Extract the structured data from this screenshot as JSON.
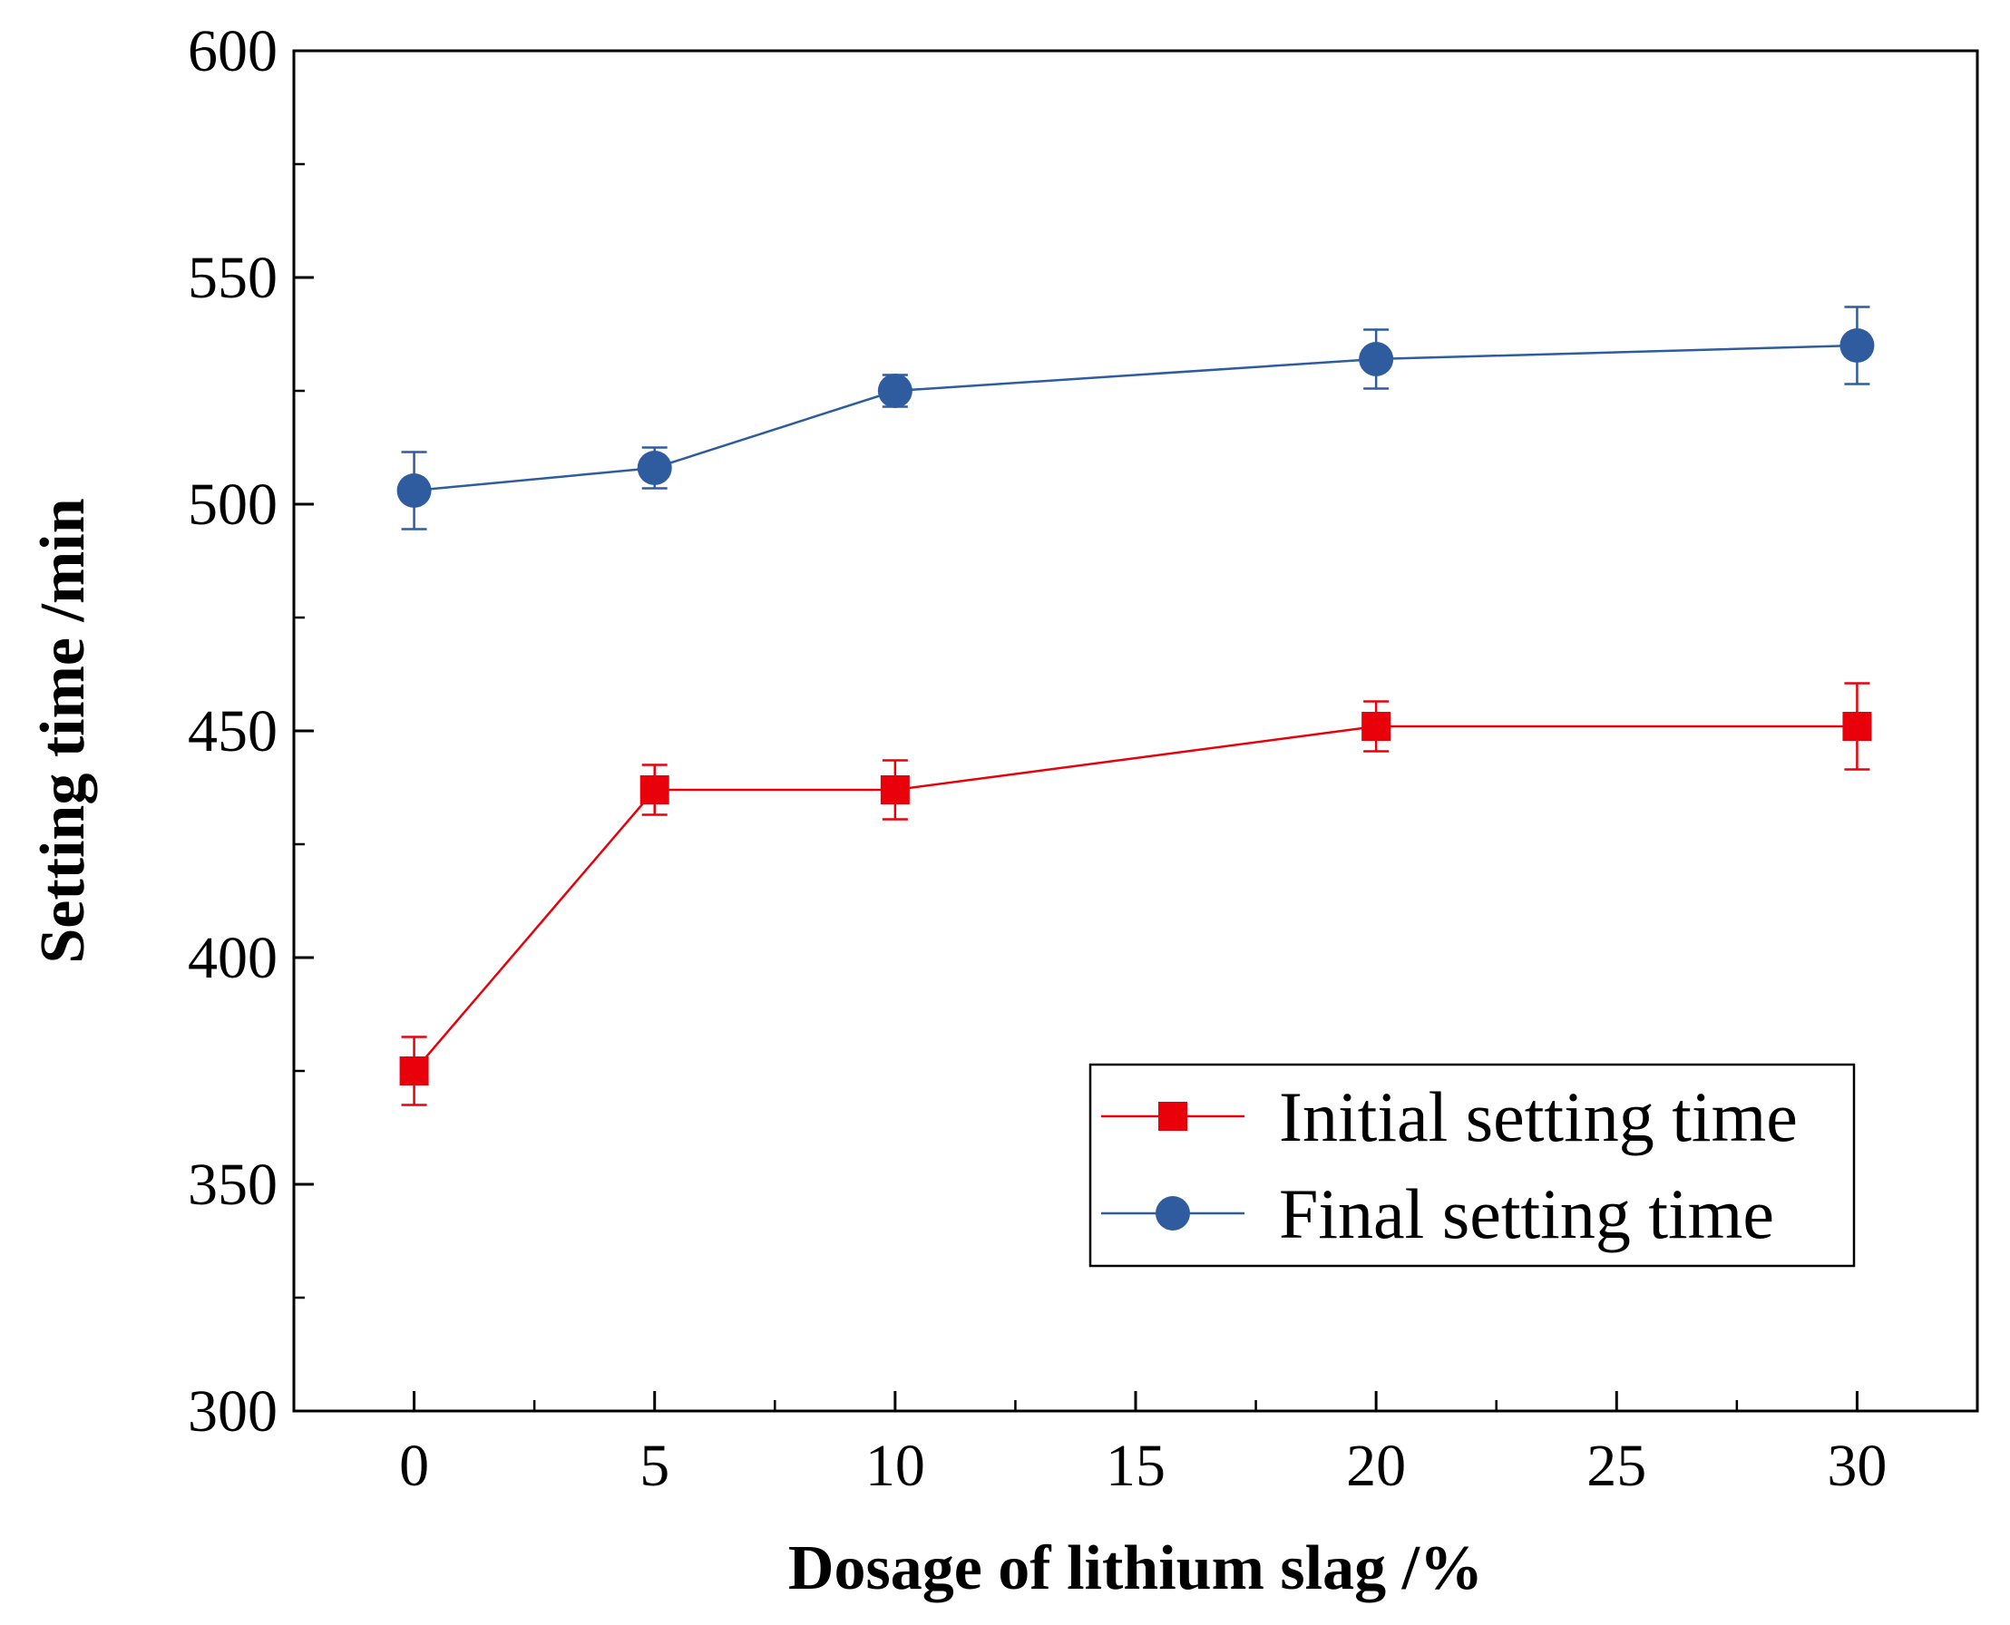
{
  "chart_data": {
    "type": "line",
    "title": "",
    "xlabel": "Dosage of lithium slag /%",
    "ylabel": "Setting time /min",
    "xlim": [
      -2.5,
      32.5
    ],
    "ylim": [
      300,
      600
    ],
    "xticks": [
      0,
      5,
      10,
      15,
      20,
      25,
      30
    ],
    "xtick_labels": [
      "0",
      "5",
      "10",
      "15",
      "20",
      "25",
      "30"
    ],
    "yticks": [
      300,
      350,
      400,
      450,
      500,
      550,
      600
    ],
    "ytick_labels": [
      "300",
      "350",
      "400",
      "450",
      "500",
      "550",
      "600"
    ],
    "grid": false,
    "legend_position": "bottom-right",
    "series": [
      {
        "name": "Initial setting time",
        "marker": "square",
        "color": "#e8000b",
        "x": [
          0,
          5,
          10,
          20,
          30
        ],
        "y": [
          375,
          437,
          437,
          451,
          451
        ],
        "error": [
          7.5,
          5.5,
          6.5,
          5.5,
          9.5
        ]
      },
      {
        "name": "Final setting time",
        "marker": "circle",
        "color": "#2e5c9e",
        "x": [
          0,
          5,
          10,
          20,
          30
        ],
        "y": [
          503,
          508,
          525,
          532,
          535
        ],
        "error": [
          8.5,
          4.5,
          3.5,
          6.5,
          8.5
        ]
      }
    ]
  }
}
